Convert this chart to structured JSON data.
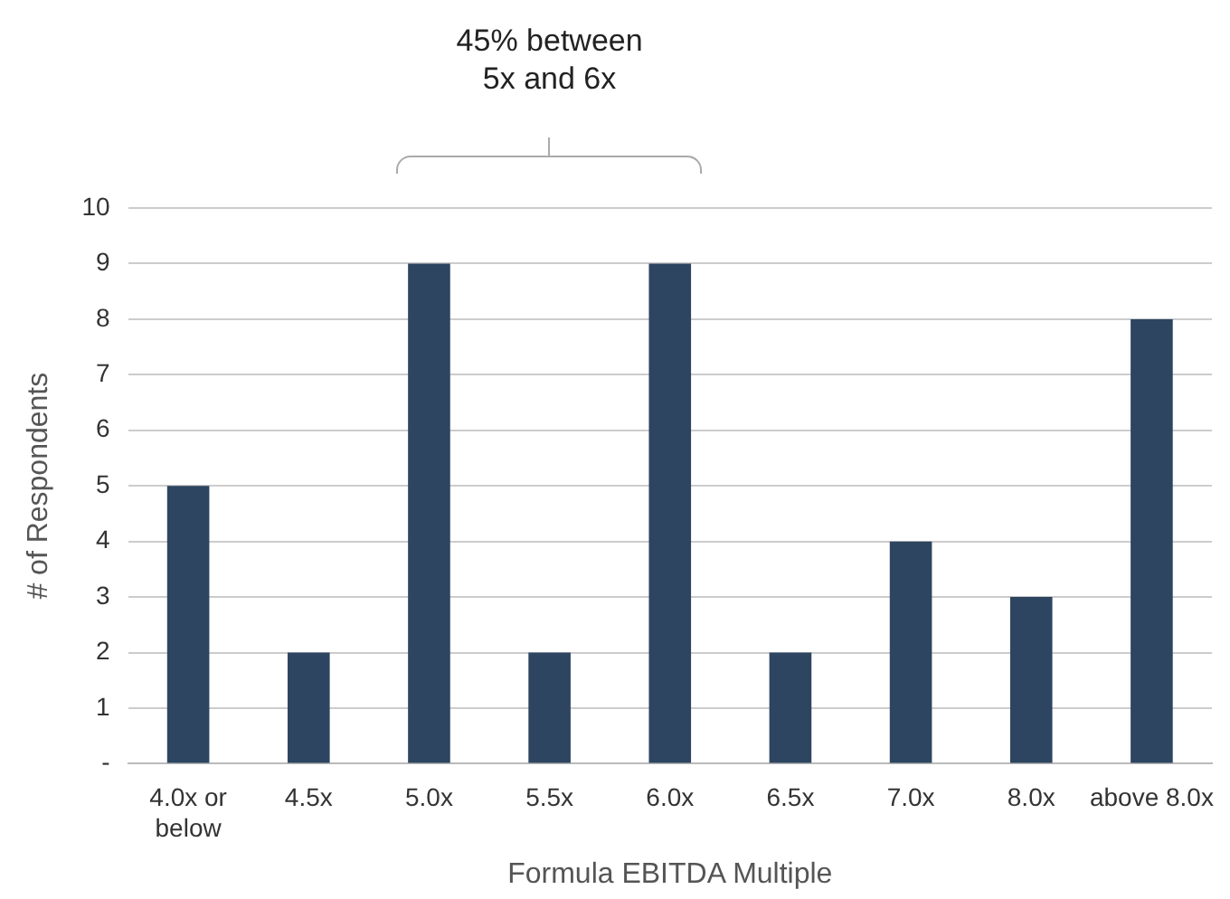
{
  "chart_data": {
    "type": "bar",
    "xlabel": "Formula EBITDA Multiple",
    "ylabel": "# of Respondents",
    "categories": [
      "4.0x or below",
      "4.5x",
      "5.0x",
      "5.5x",
      "6.0x",
      "6.5x",
      "7.0x",
      "8.0x",
      "above 8.0x"
    ],
    "values": [
      5,
      2,
      9,
      2,
      9,
      2,
      4,
      3,
      8
    ],
    "color": "#2d4560",
    "ylim": [
      0,
      10
    ],
    "yticks": [
      {
        "value": 0,
        "label": "-"
      },
      1,
      2,
      3,
      4,
      5,
      6,
      7,
      8,
      9,
      10
    ],
    "grid": "y",
    "legend": false,
    "annotations": [
      "45% between 5x and 6x"
    ]
  }
}
